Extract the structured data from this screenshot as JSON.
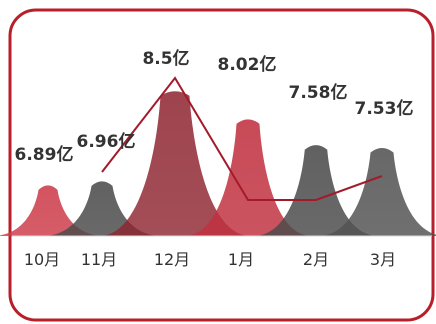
{
  "chart_data": {
    "type": "area",
    "categories": [
      "10月",
      "11月",
      "12月",
      "1月",
      "2月",
      "3月"
    ],
    "values": [
      6.89,
      6.96,
      8.5,
      8.02,
      7.58,
      7.53
    ],
    "value_labels": [
      "6.89亿",
      "6.96亿",
      "8.5亿",
      "8.02亿",
      "7.58亿",
      "7.53亿"
    ],
    "title": "",
    "xlabel": "",
    "ylabel": "",
    "grid": false,
    "legend": "none",
    "colors": {
      "red": "#c0303f",
      "gray": "#4a4a4a",
      "line": "#a31b2a",
      "frame": "#b81f2a",
      "text": "#333333"
    },
    "peak_colors": [
      "red",
      "gray",
      "red",
      "red",
      "gray",
      "gray"
    ],
    "peak_shades": [
      "#cc3b49",
      "#4a4a4a",
      "#8e2430",
      "#c0303f",
      "#4a4a4a",
      "#525252"
    ]
  }
}
